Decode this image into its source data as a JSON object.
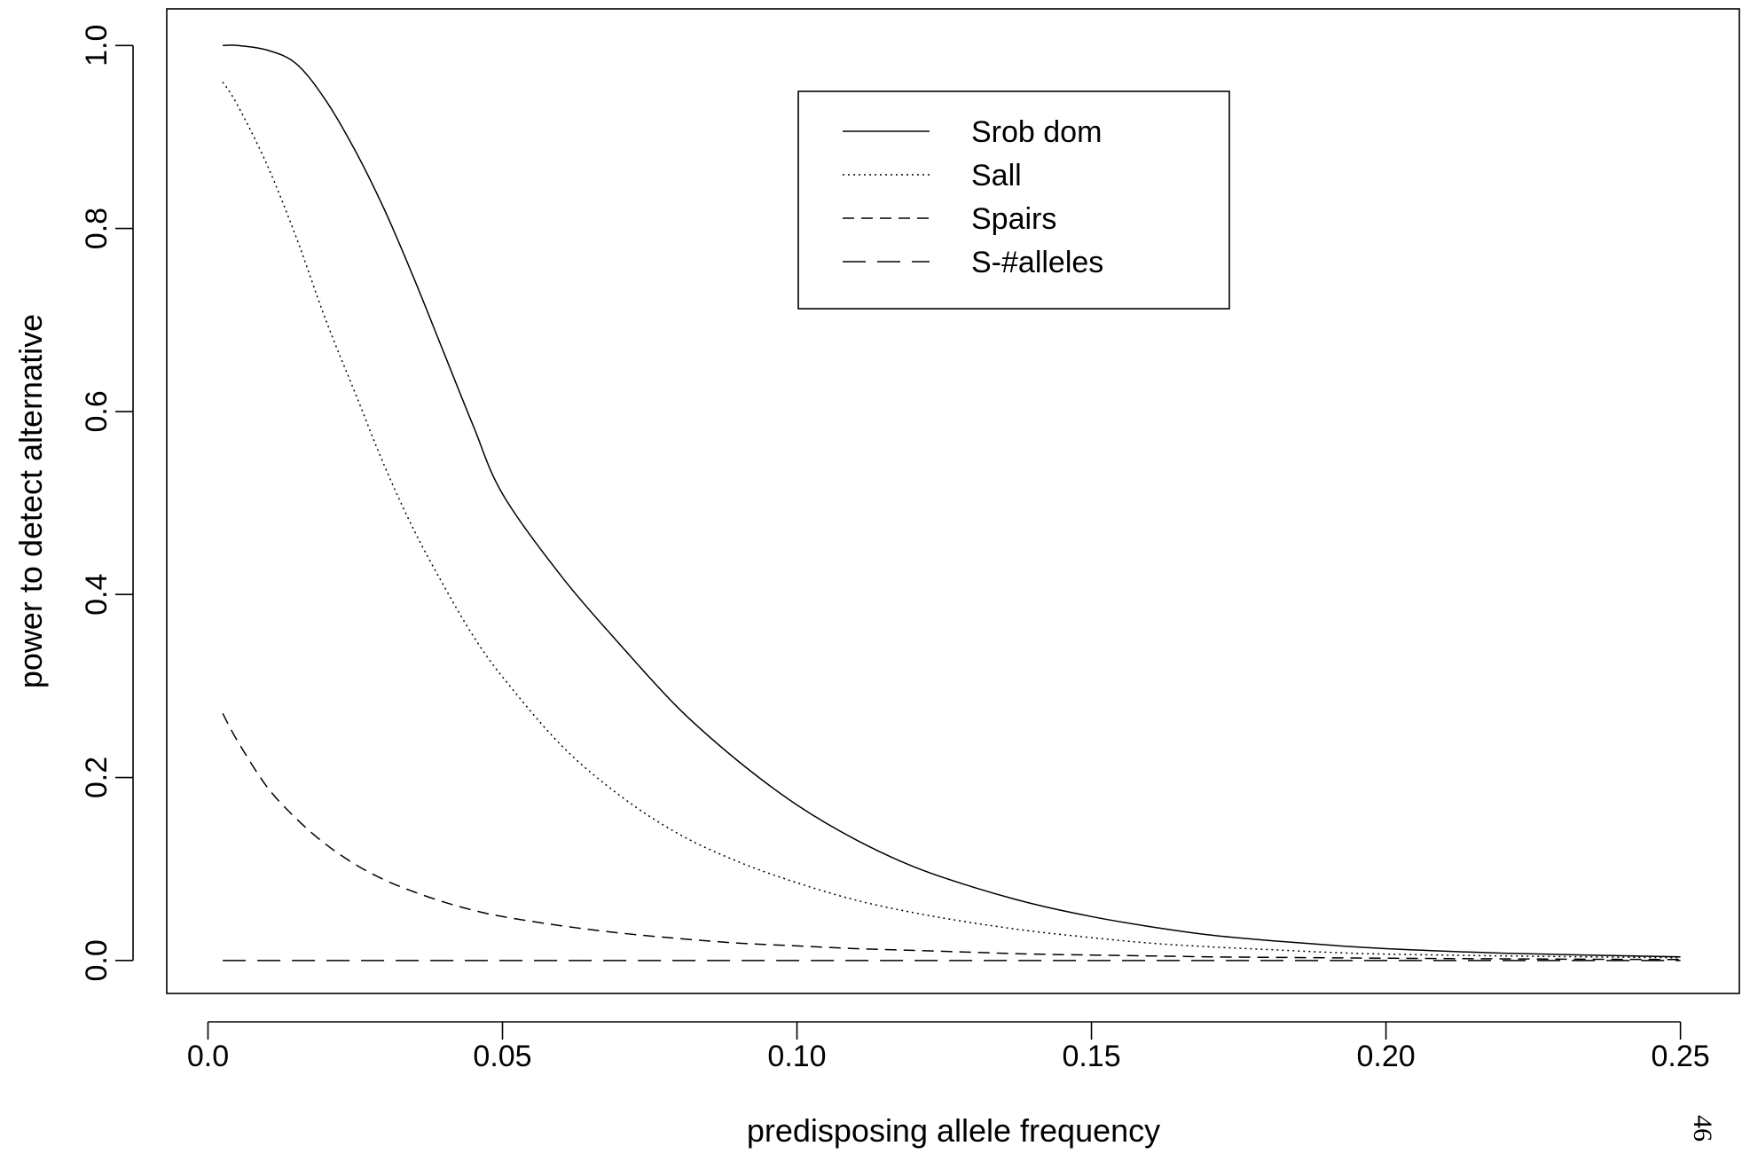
{
  "page": {
    "number": "46"
  },
  "chart_data": {
    "type": "line",
    "title": "",
    "xlabel": "predisposing allele frequency",
    "ylabel": "power to detect alternative",
    "xlim": [
      -0.007,
      0.26
    ],
    "ylim": [
      -0.036,
      1.04
    ],
    "xticks": [
      0.0,
      0.05,
      0.1,
      0.15,
      0.2,
      0.25
    ],
    "xtick_labels": [
      "0.0",
      "0.05",
      "0.10",
      "0.15",
      "0.20",
      "0.25"
    ],
    "yticks": [
      0.0,
      0.2,
      0.4,
      0.6,
      0.8,
      1.0
    ],
    "ytick_labels": [
      "0.0",
      "0.2",
      "0.4",
      "0.6",
      "0.8",
      "1.0"
    ],
    "grid": false,
    "legend_position": "top-center",
    "x": [
      0.0025,
      0.005,
      0.01,
      0.015,
      0.02,
      0.025,
      0.03,
      0.035,
      0.04,
      0.045,
      0.05,
      0.06,
      0.07,
      0.08,
      0.09,
      0.1,
      0.11,
      0.12,
      0.13,
      0.14,
      0.15,
      0.16,
      0.17,
      0.18,
      0.19,
      0.2,
      0.22,
      0.25
    ],
    "series": [
      {
        "name": "Srob dom",
        "linestyle": "solid",
        "values": [
          1.0,
          1.0,
          0.995,
          0.98,
          0.94,
          0.885,
          0.82,
          0.745,
          0.665,
          0.585,
          0.51,
          0.42,
          0.345,
          0.275,
          0.218,
          0.17,
          0.132,
          0.102,
          0.08,
          0.062,
          0.048,
          0.037,
          0.028,
          0.022,
          0.017,
          0.013,
          0.008,
          0.004
        ]
      },
      {
        "name": "Sall",
        "linestyle": "dotted",
        "values": [
          0.96,
          0.935,
          0.87,
          0.79,
          0.7,
          0.62,
          0.54,
          0.47,
          0.41,
          0.355,
          0.31,
          0.235,
          0.18,
          0.138,
          0.108,
          0.085,
          0.066,
          0.052,
          0.041,
          0.032,
          0.025,
          0.019,
          0.015,
          0.012,
          0.009,
          0.007,
          0.005,
          0.003
        ]
      },
      {
        "name": "Spairs",
        "linestyle": "dashed",
        "values": [
          0.27,
          0.24,
          0.19,
          0.155,
          0.127,
          0.105,
          0.088,
          0.075,
          0.064,
          0.055,
          0.048,
          0.038,
          0.03,
          0.024,
          0.019,
          0.016,
          0.013,
          0.011,
          0.009,
          0.007,
          0.006,
          0.005,
          0.004,
          0.0035,
          0.003,
          0.0025,
          0.0018,
          0.001
        ]
      },
      {
        "name": "S-#alleles",
        "linestyle": "longdash",
        "values": [
          0.0,
          0.0,
          0.0,
          0.0,
          0.0,
          0.0,
          0.0,
          0.0,
          0.0,
          0.0,
          0.0,
          0.0,
          0.0,
          0.0,
          0.0,
          0.0,
          0.0,
          0.0,
          0.0,
          0.0,
          0.0,
          0.0,
          0.0,
          0.0,
          0.0,
          0.0,
          0.0,
          0.0
        ]
      }
    ]
  }
}
